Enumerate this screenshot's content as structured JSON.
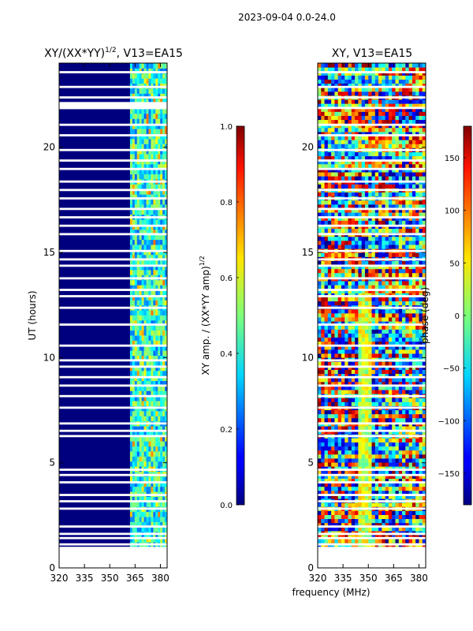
{
  "suptitle": "2023-09-04 0.0-24.0",
  "colors": {
    "background_band": "#00007f",
    "gap": "#ffffff",
    "frame": "#000000"
  },
  "chart_data": [
    {
      "type": "heatmap",
      "title_main": "XY/(XX*YY)",
      "title_sup": "1/2",
      "title_tail": ", V13=EA15",
      "ylabel": "UT (hours)",
      "xlim": [
        320,
        384
      ],
      "ylim": [
        0,
        24
      ],
      "xticks": [
        320,
        335,
        350,
        365,
        380
      ],
      "yticks": [
        0,
        5,
        10,
        15,
        20
      ],
      "data_band_x": [
        362,
        384
      ],
      "colorbar": {
        "label": "XY amp. / (XX*YY amp)",
        "label_sup": "1/2",
        "min": 0.0,
        "max": 1.0,
        "ticks": [
          "0.0",
          "0.2",
          "0.4",
          "0.6",
          "0.8",
          "1.0"
        ]
      }
    },
    {
      "type": "heatmap",
      "title": "XY, V13=EA15",
      "xlabel": "frequency (MHz)",
      "xlim": [
        320,
        384
      ],
      "ylim": [
        0,
        24
      ],
      "xticks": [
        320,
        335,
        350,
        365,
        380
      ],
      "yticks": [
        0,
        5,
        10,
        15,
        20
      ],
      "colorbar": {
        "label": "phase (deg)",
        "min": -180,
        "max": 180,
        "ticks": [
          "−150",
          "−100",
          "−50",
          "0",
          "50",
          "100",
          "150"
        ]
      }
    }
  ]
}
